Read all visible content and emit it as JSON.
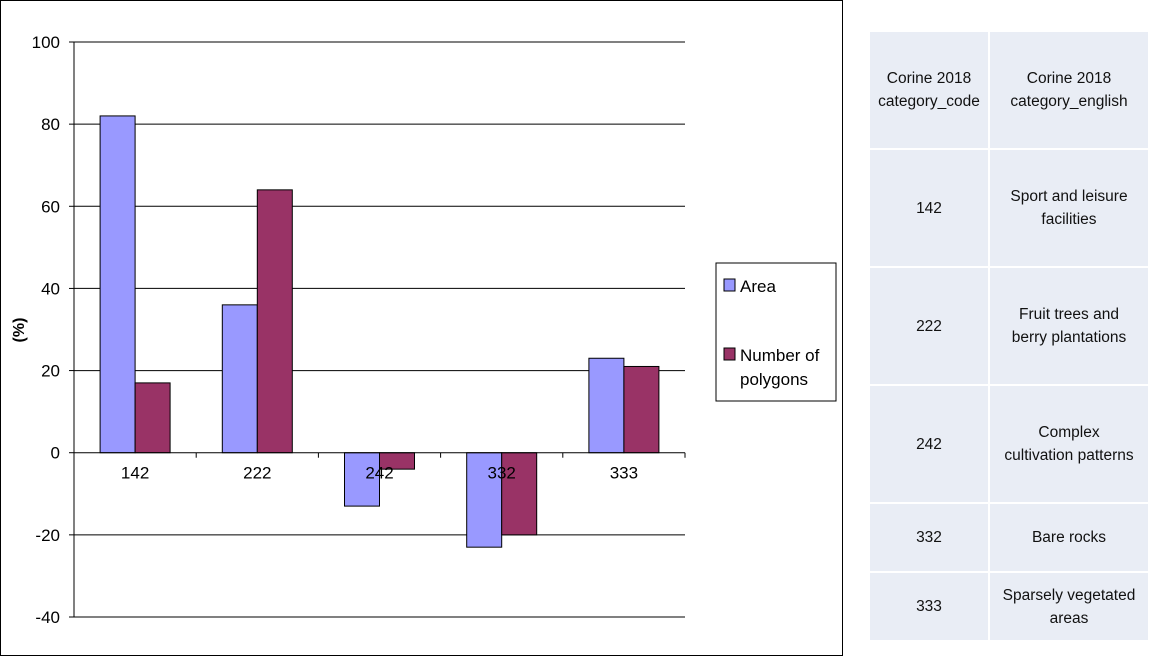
{
  "chart_data": {
    "type": "bar",
    "categories": [
      "142",
      "222",
      "242",
      "332",
      "333"
    ],
    "series": [
      {
        "name": "Area",
        "values": [
          82,
          36,
          -13,
          -23,
          23
        ],
        "color": "#9999ff"
      },
      {
        "name": "Number of polygons",
        "values": [
          17,
          64,
          -4,
          -20,
          21
        ],
        "color": "#993366"
      }
    ],
    "ylabel": "(%)",
    "ylim": [
      -40,
      100
    ],
    "yticks": [
      100,
      80,
      60,
      40,
      20,
      0,
      -20,
      -40
    ],
    "grid": true,
    "legend_position": "right"
  },
  "legend": {
    "area_label": "Area",
    "polygons_label_line1": "Number of",
    "polygons_label_line2": "polygons"
  },
  "table": {
    "header": {
      "code": [
        "Corine 2018",
        "category_code"
      ],
      "english": [
        "Corine 2018",
        "category_english"
      ]
    },
    "rows": [
      {
        "code": "142",
        "english": [
          "Sport and leisure",
          "facilities"
        ]
      },
      {
        "code": "222",
        "english": [
          "Fruit trees and",
          "berry plantations"
        ]
      },
      {
        "code": "242",
        "english": [
          "Complex",
          "cultivation patterns"
        ]
      },
      {
        "code": "332",
        "english": [
          "Bare rocks"
        ]
      },
      {
        "code": "333",
        "english": [
          "Sparsely vegetated",
          "areas"
        ]
      }
    ]
  }
}
